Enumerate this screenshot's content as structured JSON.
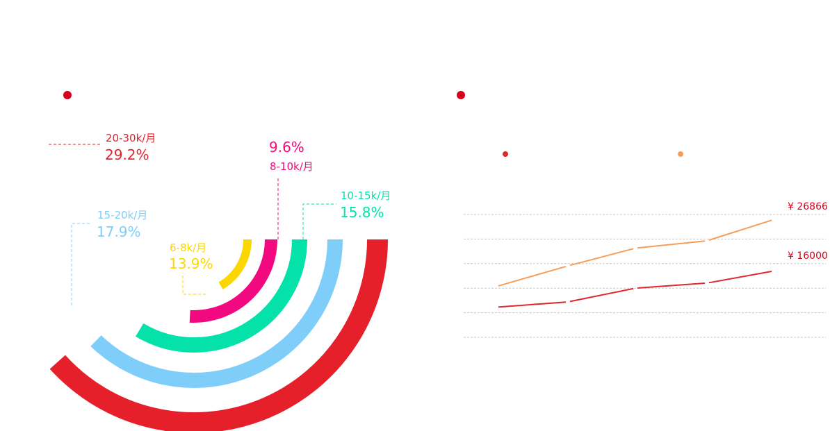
{
  "colors": {
    "bullet": "#d9001b",
    "ring_20_30k": "#e5202b",
    "ring_15_20k": "#7ecef9",
    "ring_10_15k": "#05e2a9",
    "ring_8_10k": "#f2097f",
    "ring_6_8k": "#fad701",
    "line_orange": "#f59e5b",
    "line_red": "#e1262c",
    "grid": "#c8c8c8",
    "price_label": "#d9001b"
  },
  "chart_data": [
    {
      "type": "pie",
      "variant": "concentric-arcs",
      "title": "",
      "slices": [
        {
          "label": "20-30k/月",
          "value": 29.2,
          "value_text": "29.2%",
          "color": "#e5202b"
        },
        {
          "label": "15-20k/月",
          "value": 17.9,
          "value_text": "17.9%",
          "color": "#7ecef9"
        },
        {
          "label": "10-15k/月",
          "value": 15.8,
          "value_text": "15.8%",
          "color": "#05e2a9"
        },
        {
          "label": "8-10k/月",
          "value": 9.6,
          "value_text": "9.6%",
          "color": "#f2097f"
        },
        {
          "label": "6-8k/月",
          "value": 13.9,
          "value_text": "13.9%",
          "color": "#fad701"
        }
      ]
    },
    {
      "type": "line",
      "title": "",
      "grid": true,
      "series": [
        {
          "values": [
            19000,
            22500,
            25600,
            26900,
            30600
          ],
          "end_label": "¥ 26866",
          "color": "#f59e5b"
        },
        {
          "values": [
            15300,
            16200,
            18600,
            19500,
            21600
          ],
          "end_label": "¥ 16000",
          "color": "#e1262c"
        }
      ],
      "ylim": [
        10000,
        31500
      ]
    }
  ]
}
